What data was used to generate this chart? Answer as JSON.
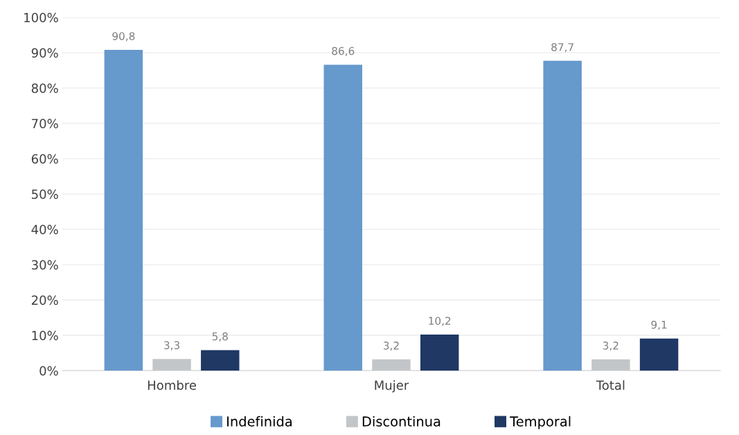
{
  "chart_data": {
    "type": "bar",
    "categories": [
      "Hombre",
      "Mujer",
      "Total"
    ],
    "series": [
      {
        "name": "Indefinida",
        "color": "#6699cc",
        "values": [
          90.8,
          86.6,
          87.7
        ],
        "value_labels": [
          "90,8",
          "86,6",
          "87,7"
        ]
      },
      {
        "name": "Discontinua",
        "color": "#c3c6c9",
        "values": [
          3.3,
          3.2,
          3.2
        ],
        "value_labels": [
          "3,3",
          "3,2",
          "3,2"
        ]
      },
      {
        "name": "Temporal",
        "color": "#1f3864",
        "values": [
          5.8,
          10.2,
          9.1
        ],
        "value_labels": [
          "5,8",
          "10,2",
          "9,1"
        ]
      }
    ],
    "ylim": [
      0,
      100
    ],
    "yticks": [
      {
        "value": 0,
        "label": "0%"
      },
      {
        "value": 10,
        "label": "10%"
      },
      {
        "value": 20,
        "label": "20%"
      },
      {
        "value": 30,
        "label": "30%"
      },
      {
        "value": 40,
        "label": "40%"
      },
      {
        "value": 50,
        "label": "50%"
      },
      {
        "value": 60,
        "label": "60%"
      },
      {
        "value": 70,
        "label": "70%"
      },
      {
        "value": 80,
        "label": "80%"
      },
      {
        "value": 90,
        "label": "90%"
      },
      {
        "value": 100,
        "label": "100%"
      }
    ],
    "grid": "y",
    "legend": "bottom"
  }
}
